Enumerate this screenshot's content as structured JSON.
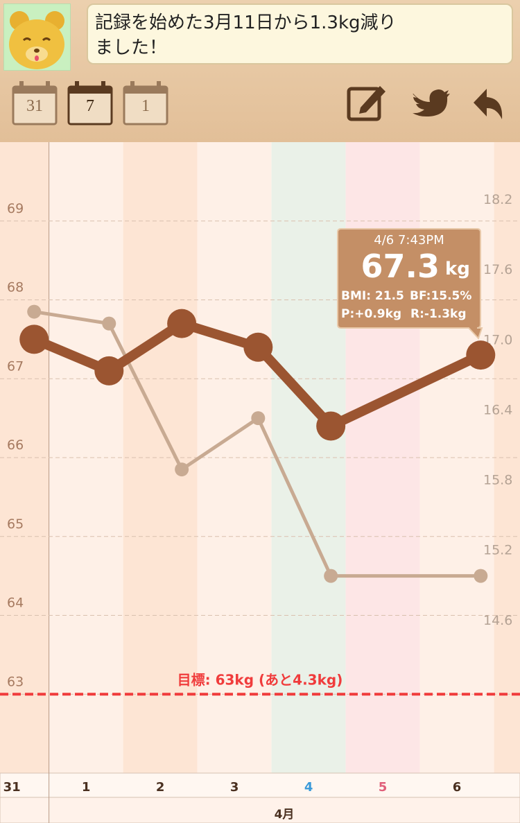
{
  "header": {
    "message_line1": "記録を始めた3月11日から1.3kg減り",
    "message_line2": "ました！",
    "calendar_month": "31",
    "calendar_week": "7",
    "calendar_day": "1"
  },
  "tooltip": {
    "time": "4/6 7:43PM",
    "weight": "67.3",
    "unit": "kg",
    "bmi": "BMI: 21.5",
    "bf": "BF:15.5%",
    "p": "P:+0.9kg",
    "r": "R:-1.3kg"
  },
  "chart_data": {
    "type": "line",
    "x": [
      0.8,
      1.81,
      2.79,
      3.82,
      4.8,
      6.82
    ],
    "xlim": [
      0.34,
      7.35
    ],
    "xticks": [
      {
        "value": 0.5,
        "label": "31"
      },
      {
        "value": 1.5,
        "label": "1"
      },
      {
        "value": 2.5,
        "label": "2"
      },
      {
        "value": 3.5,
        "label": "3"
      },
      {
        "value": 4.5,
        "label": "4"
      },
      {
        "value": 5.5,
        "label": "5"
      },
      {
        "value": 6.5,
        "label": "6"
      }
    ],
    "xlabel": "4月",
    "series": [
      {
        "color": "#c8aa92",
        "values": [
          67.85,
          67.7,
          65.85,
          66.5,
          64.5,
          64.5
        ]
      },
      {
        "color": "#9b5531",
        "values": [
          67.5,
          67.1,
          67.7,
          67.4,
          66.4,
          67.3
        ]
      }
    ],
    "ylim": [
      62,
      70
    ],
    "yticks": [
      63,
      64,
      65,
      66,
      67,
      68,
      69
    ],
    "y2lim": [
      13.4,
      18.8
    ],
    "y2ticks": [
      14.6,
      15.2,
      15.8,
      16.4,
      {
        "value": 17,
        "label": "17.0"
      },
      17.6,
      18.2
    ],
    "grid": true,
    "goal": {
      "value": 63,
      "label": "目標: 63kg (あと4.3kg)",
      "color": "#f03c3c"
    }
  }
}
